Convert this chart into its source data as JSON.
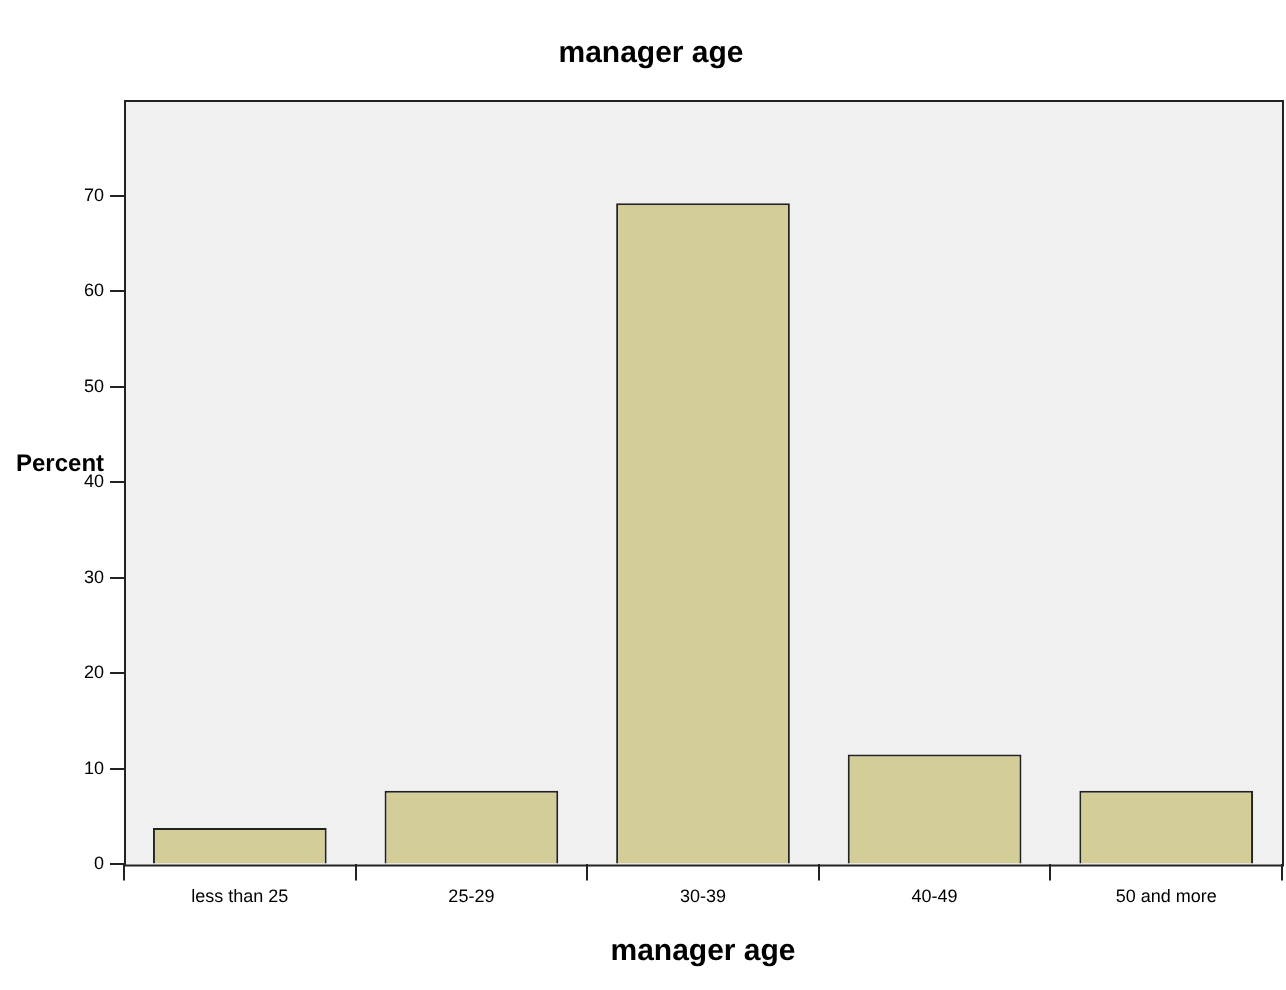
{
  "chart_data": {
    "type": "bar",
    "title": "manager age",
    "xlabel": "manager age",
    "ylabel": "Percent",
    "categories": [
      "less than 25",
      "25-29",
      "30-39",
      "40-49",
      "50 and more"
    ],
    "values": [
      3.8,
      7.7,
      69.2,
      11.5,
      7.7
    ],
    "color": "#d3ce97",
    "ylim": [
      0,
      80
    ],
    "yticks": [
      0,
      10,
      20,
      30,
      40,
      50,
      60,
      70
    ],
    "grid": false,
    "legend": false
  }
}
